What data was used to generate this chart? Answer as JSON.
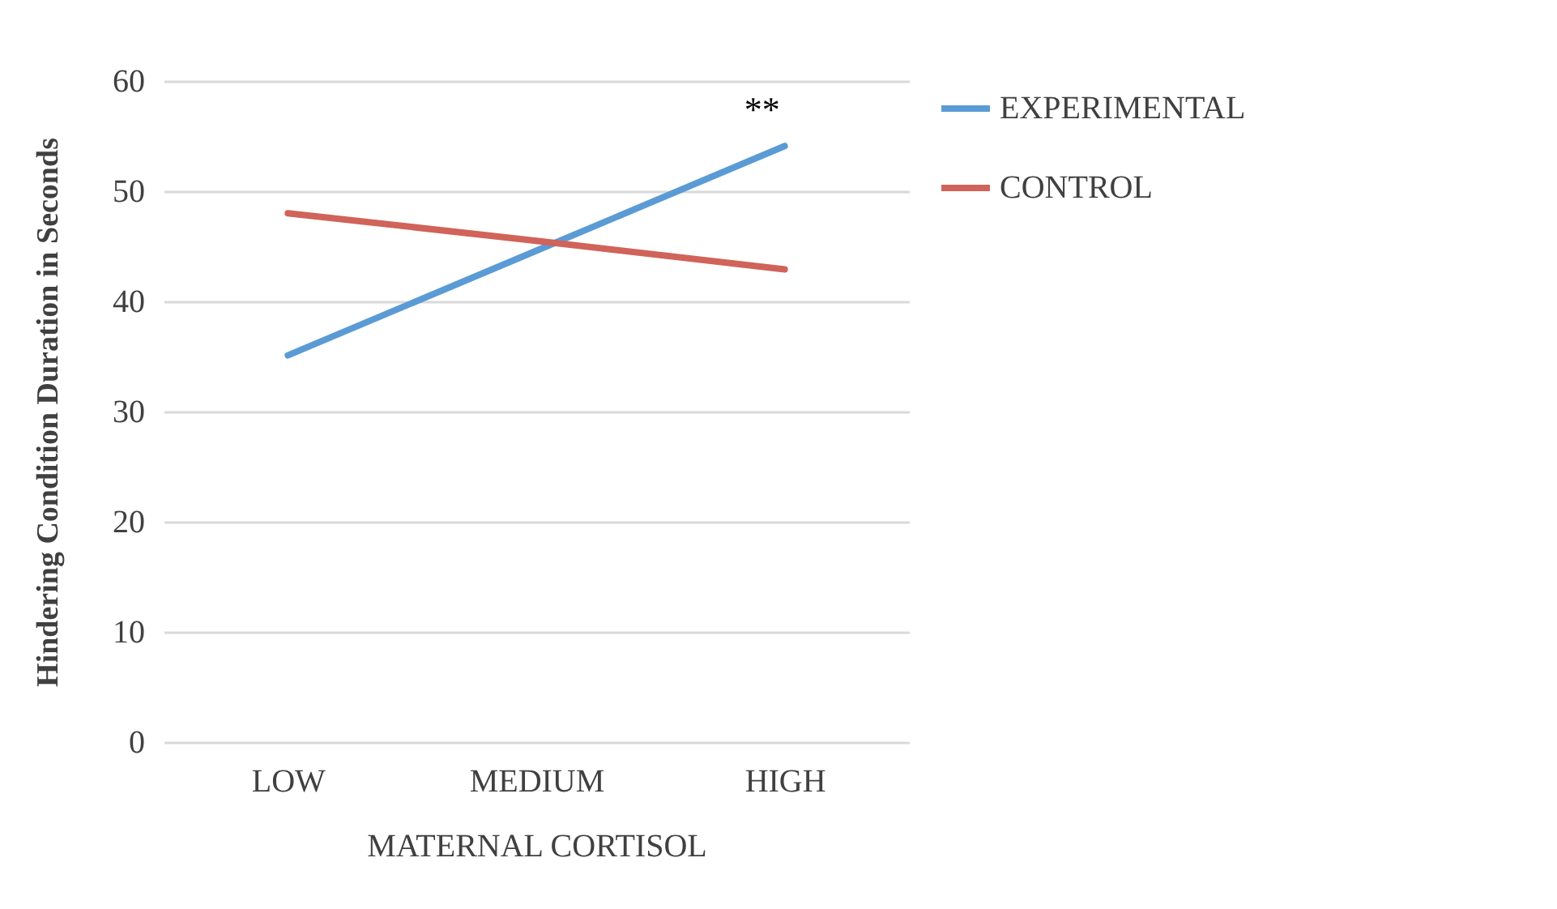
{
  "chart_data": {
    "type": "line",
    "xlabel": "MATERNAL CORTISOL",
    "ylabel": "Hindering Condition Duration in Seconds",
    "categories": [
      "LOW",
      "MEDIUM",
      "HIGH"
    ],
    "series": [
      {
        "name": "EXPERIMENTAL",
        "color": "#5b9bd5",
        "values": [
          35.1,
          44.6,
          54.1
        ]
      },
      {
        "name": "CONTROL",
        "color": "#d0635a",
        "values": [
          48.0,
          45.5,
          42.9
        ]
      }
    ],
    "ylim": [
      0,
      60
    ],
    "yticks": [
      0,
      10,
      20,
      30,
      40,
      50,
      60
    ],
    "grid": "y",
    "legend": "right",
    "marker": "none",
    "line_style": "solid",
    "annotations": [
      {
        "text": "**",
        "x": "HIGH",
        "y": 54.1
      }
    ]
  }
}
